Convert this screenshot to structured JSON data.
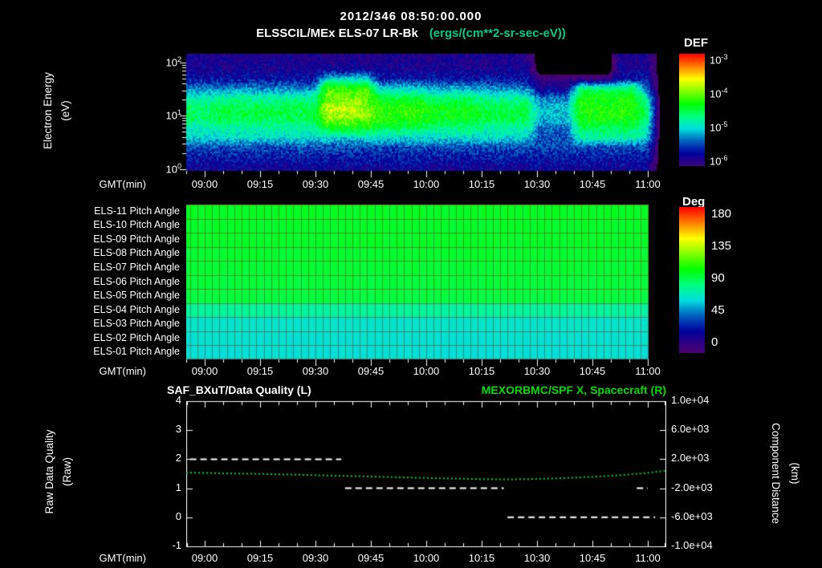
{
  "header": {
    "timestamp": "2012/346 08:50:00.000",
    "units_color": "#00cc88"
  },
  "time_axis": {
    "label": "GMT(min)",
    "start": "08:55",
    "end": "11:05",
    "ticks": [
      "09:00",
      "09:15",
      "09:30",
      "09:45",
      "10:00",
      "10:15",
      "10:30",
      "10:45",
      "11:00"
    ]
  },
  "chart_data": [
    {
      "type": "heatmap",
      "title": "ELSSCIL/MEx ELS-07 LR-Bk",
      "units": "(ergs/(cm**2-sr-sec-eV))",
      "ylabel_line1": "Electron Energy",
      "ylabel_line2": "(eV)",
      "y_scale": "log",
      "y_ticks": [
        {
          "base": "10",
          "exp": "2"
        },
        {
          "base": "10",
          "exp": "1"
        },
        {
          "base": "10",
          "exp": "0"
        }
      ],
      "colorbar": {
        "label": "DEF",
        "ticks": [
          {
            "base": "10",
            "exp": "-3"
          },
          {
            "base": "10",
            "exp": "-4"
          },
          {
            "base": "10",
            "exp": "-5"
          },
          {
            "base": "10",
            "exp": "-6"
          }
        ]
      },
      "log10_flux_color_range": [
        -6.3,
        -2.8
      ],
      "n_time_bins": 36,
      "time_span": [
        "08:55",
        "11:05"
      ],
      "grid_rows_energy_desc": [
        [
          -5.95,
          -5.95,
          -5.95,
          -5.95,
          -5.95,
          -5.95,
          -5.95,
          -5.95,
          -5.95,
          -5.95,
          -5.95,
          -5.95,
          -5.95,
          -5.95,
          -5.95,
          -5.95,
          -5.95,
          -5.95,
          -5.95,
          -5.95,
          -5.95,
          -5.95,
          -5.95,
          -5.95,
          -5.95,
          -5.95,
          -6.6,
          -6.6,
          -6.6,
          -6.6,
          -6.6,
          -6.6,
          -5.95,
          -5.95,
          -5.95,
          -6.5
        ],
        [
          -5.9,
          -5.9,
          -5.9,
          -5.9,
          -5.9,
          -5.9,
          -5.9,
          -5.9,
          -5.9,
          -5.9,
          -5.9,
          -5.9,
          -5.9,
          -5.9,
          -5.9,
          -5.9,
          -5.9,
          -5.9,
          -5.9,
          -5.9,
          -5.9,
          -5.9,
          -5.9,
          -5.9,
          -5.9,
          -5.9,
          -6.6,
          -6.6,
          -6.6,
          -6.6,
          -6.6,
          -6.6,
          -5.9,
          -5.9,
          -5.9,
          -6.5
        ],
        [
          -5.75,
          -5.75,
          -5.75,
          -5.75,
          -5.75,
          -5.75,
          -5.75,
          -5.75,
          -5.75,
          -5.75,
          -5.0,
          -5.0,
          -5.0,
          -5.0,
          -5.75,
          -5.75,
          -5.75,
          -5.75,
          -5.75,
          -5.75,
          -5.75,
          -5.75,
          -5.75,
          -5.75,
          -5.75,
          -5.75,
          -6.2,
          -6.2,
          -6.2,
          -6.2,
          -6.2,
          -6.2,
          -5.75,
          -5.75,
          -5.75,
          -6.5
        ],
        [
          -5.3,
          -5.3,
          -5.3,
          -5.3,
          -5.3,
          -5.3,
          -5.3,
          -5.3,
          -5.3,
          -5.3,
          -4.1,
          -4.1,
          -4.1,
          -4.1,
          -5.0,
          -5.0,
          -5.0,
          -5.0,
          -5.15,
          -5.15,
          -5.15,
          -5.15,
          -5.3,
          -5.3,
          -5.3,
          -5.3,
          -5.9,
          -5.9,
          -5.9,
          -4.6,
          -4.6,
          -4.6,
          -4.6,
          -4.6,
          -5.4,
          -6.5
        ],
        [
          -4.85,
          -4.85,
          -4.75,
          -4.75,
          -4.75,
          -4.75,
          -4.75,
          -4.75,
          -4.75,
          -4.75,
          -4.0,
          -4.0,
          -4.0,
          -4.0,
          -4.45,
          -4.45,
          -4.45,
          -4.45,
          -4.6,
          -4.6,
          -4.6,
          -4.6,
          -4.75,
          -4.75,
          -4.75,
          -4.75,
          -5.35,
          -5.35,
          -5.35,
          -4.3,
          -4.3,
          -4.3,
          -4.3,
          -4.3,
          -4.85,
          -6.5
        ],
        [
          -4.6,
          -4.6,
          -4.5,
          -4.5,
          -4.5,
          -4.5,
          -4.5,
          -4.5,
          -4.5,
          -4.5,
          -3.7,
          -3.7,
          -3.7,
          -4.0,
          -4.2,
          -4.2,
          -4.2,
          -4.2,
          -4.35,
          -4.35,
          -4.35,
          -4.35,
          -4.5,
          -4.5,
          -4.5,
          -4.5,
          -5.1,
          -5.1,
          -5.1,
          -4.25,
          -4.25,
          -4.25,
          -4.25,
          -4.25,
          -4.6,
          -6.5
        ],
        [
          -4.6,
          -4.6,
          -4.5,
          -4.5,
          -4.5,
          -4.5,
          -4.5,
          -4.5,
          -4.5,
          -4.5,
          -3.9,
          -3.9,
          -3.9,
          -3.9,
          -4.2,
          -4.2,
          -4.2,
          -4.2,
          -4.35,
          -4.35,
          -4.35,
          -4.35,
          -4.5,
          -4.5,
          -4.5,
          -4.5,
          -5.1,
          -5.1,
          -5.1,
          -4.25,
          -4.25,
          -4.25,
          -4.25,
          -4.25,
          -4.6,
          -6.5
        ],
        [
          -4.9,
          -4.9,
          -4.8,
          -4.8,
          -4.8,
          -4.8,
          -4.8,
          -4.8,
          -4.8,
          -4.8,
          -4.3,
          -4.3,
          -4.3,
          -4.3,
          -4.5,
          -4.5,
          -4.5,
          -4.5,
          -4.65,
          -4.65,
          -4.65,
          -4.65,
          -4.8,
          -4.8,
          -4.8,
          -4.8,
          -5.4,
          -5.4,
          -5.4,
          -4.55,
          -4.55,
          -4.55,
          -4.55,
          -4.55,
          -4.9,
          -6.5
        ],
        [
          -5.0,
          -5.0,
          -5.0,
          -5.0,
          -5.0,
          -5.0,
          -5.0,
          -5.0,
          -5.0,
          -5.0,
          -5.0,
          -5.0,
          -5.0,
          -5.0,
          -5.0,
          -5.0,
          -5.0,
          -5.0,
          -5.0,
          -5.0,
          -5.0,
          -5.0,
          -5.0,
          -5.0,
          -5.0,
          -5.0,
          -5.5,
          -5.5,
          -5.5,
          -4.8,
          -4.8,
          -4.8,
          -4.8,
          -4.8,
          -5.0,
          -6.5
        ],
        [
          -5.5,
          -5.5,
          -5.5,
          -5.5,
          -5.5,
          -5.5,
          -5.5,
          -5.5,
          -5.5,
          -5.5,
          -5.5,
          -5.5,
          -5.5,
          -5.5,
          -5.5,
          -5.5,
          -5.5,
          -5.5,
          -5.5,
          -5.5,
          -5.5,
          -5.5,
          -5.5,
          -5.5,
          -5.5,
          -5.5,
          -5.5,
          -5.5,
          -5.5,
          -5.5,
          -5.5,
          -5.5,
          -5.5,
          -5.5,
          -5.5,
          -6.5
        ],
        [
          -5.7,
          -5.7,
          -5.7,
          -5.7,
          -5.7,
          -5.7,
          -5.7,
          -5.7,
          -5.7,
          -5.7,
          -5.7,
          -5.7,
          -5.7,
          -5.7,
          -5.7,
          -5.7,
          -5.7,
          -5.7,
          -5.7,
          -5.7,
          -5.7,
          -5.7,
          -5.7,
          -5.7,
          -5.7,
          -5.7,
          -5.7,
          -5.7,
          -5.7,
          -5.7,
          -5.7,
          -5.7,
          -5.7,
          -5.7,
          -5.7,
          -6.5
        ],
        [
          -5.85,
          -5.85,
          -5.85,
          -5.85,
          -5.85,
          -5.85,
          -5.85,
          -5.85,
          -5.85,
          -5.85,
          -5.85,
          -5.85,
          -5.85,
          -5.85,
          -5.85,
          -5.85,
          -5.85,
          -5.85,
          -5.85,
          -5.85,
          -5.85,
          -5.85,
          -5.85,
          -5.85,
          -5.85,
          -5.85,
          -5.85,
          -5.85,
          -5.85,
          -5.85,
          -5.85,
          -5.85,
          -5.85,
          -5.85,
          -5.85,
          -6.5
        ]
      ]
    },
    {
      "type": "heatmap",
      "rows": [
        "ELS-11 Pitch Angle",
        "ELS-10 Pitch Angle",
        "ELS-09 Pitch Angle",
        "ELS-08 Pitch Angle",
        "ELS-07 Pitch Angle",
        "ELS-06 Pitch Angle",
        "ELS-05 Pitch Angle",
        "ELS-04 Pitch Angle",
        "ELS-03 Pitch Angle",
        "ELS-02 Pitch Angle",
        "ELS-01 Pitch Angle"
      ],
      "row_mean_pitch_deg": [
        96,
        95,
        95,
        94,
        93,
        92,
        91,
        74,
        63,
        61,
        60
      ],
      "data_end": "11:00",
      "colorbar": {
        "label": "Deg",
        "ticks": [
          180,
          135,
          90,
          45,
          0
        ],
        "range": [
          0,
          180
        ]
      }
    },
    {
      "type": "line",
      "left_title": "SAF_BXuT/Data Quality (L)",
      "right_title": "MEXORBMC/SPF X, Spacecraft (R)",
      "right_title_color": "#00dd00",
      "quality_color": "#ffffff",
      "curve_color": "#00cc33",
      "left_axis": {
        "label_line1": "Raw Data Quality",
        "label_line2": "(Raw)",
        "range": [
          -1,
          4
        ],
        "ticks": [
          "4",
          "3",
          "2",
          "1",
          "0",
          "-1"
        ]
      },
      "right_axis": {
        "label_line1": "Component Distance",
        "label_line2": "(km)",
        "range": [
          -10000,
          10000
        ],
        "ticks": [
          "1.0e+04",
          "6.0e+03",
          "2.0e+03",
          "-2.0e+03",
          "-6.0e+03",
          "-1.0e+04"
        ]
      },
      "series": [
        {
          "name": "SAF_BXuT/Data Quality",
          "axis": "left",
          "style": "dashed",
          "segments": [
            {
              "value": 2,
              "from": "08:56",
              "to": "09:37"
            },
            {
              "value": 1,
              "from": "09:38",
              "to": "10:21"
            },
            {
              "value": 0,
              "from": "10:22",
              "to": "11:02"
            },
            {
              "value": 1,
              "from": "10:57",
              "to": "11:00"
            }
          ]
        },
        {
          "name": "MEXORBMC/SPF X Spacecraft",
          "axis": "right",
          "style": "dotted",
          "points": [
            [
              "08:55",
              150
            ],
            [
              "09:05",
              60
            ],
            [
              "09:15",
              -30
            ],
            [
              "09:25",
              -140
            ],
            [
              "09:35",
              -260
            ],
            [
              "09:45",
              -390
            ],
            [
              "09:55",
              -520
            ],
            [
              "10:05",
              -640
            ],
            [
              "10:15",
              -740
            ],
            [
              "10:22",
              -780
            ],
            [
              "10:30",
              -720
            ],
            [
              "10:38",
              -590
            ],
            [
              "10:46",
              -400
            ],
            [
              "10:54",
              -150
            ],
            [
              "11:00",
              120
            ],
            [
              "11:05",
              420
            ]
          ]
        }
      ]
    }
  ]
}
